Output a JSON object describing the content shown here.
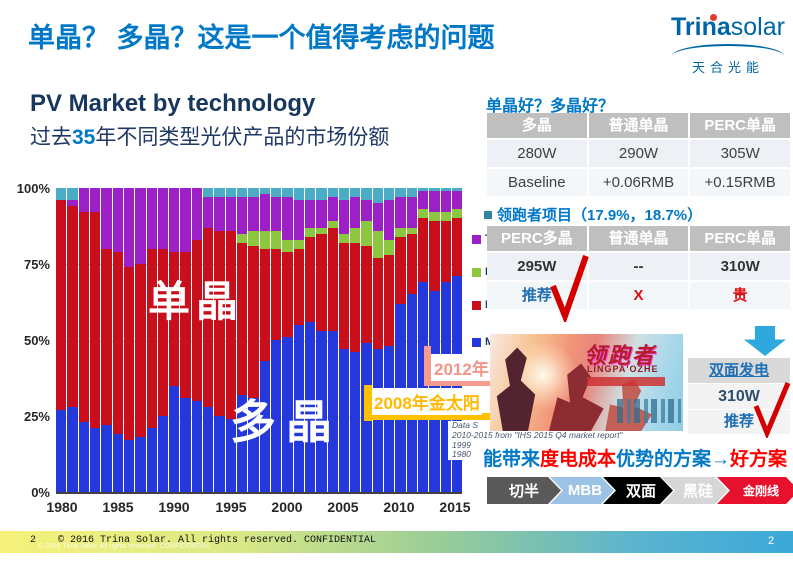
{
  "title": "单晶？ 多晶？这是一个值得考虑的问题",
  "logo": {
    "brand_bold": "Trina",
    "brand_light": "solar",
    "subtitle": "天合光能"
  },
  "chart": {
    "title": "PV Market by technology",
    "subtitle_prefix": "过去",
    "subtitle_num": "35",
    "subtitle_suffix": "年不同类型光伏产品的市场份额",
    "overlay_mono": "单晶",
    "overlay_multi": "多晶",
    "y_ticks": [
      "100%",
      "75%",
      "50%",
      "25%",
      "0%"
    ],
    "x_ticks": [
      "1980",
      "1985",
      "1990",
      "1995",
      "2000",
      "2005",
      "2010",
      "2015"
    ]
  },
  "chart_data": {
    "type": "bar",
    "subtype": "stacked-100-percent",
    "title": "PV Market by technology",
    "xlabel": "year",
    "ylabel": "market share %",
    "ylim": [
      0,
      100
    ],
    "grid": true,
    "legend_note": "legend labels occluded by overlapping tables; only colour swatches and first letters visible",
    "x": [
      1980,
      1981,
      1982,
      1983,
      1984,
      1985,
      1986,
      1987,
      1988,
      1989,
      1990,
      1991,
      1992,
      1993,
      1994,
      1995,
      1996,
      1997,
      1998,
      1999,
      2000,
      2001,
      2002,
      2003,
      2004,
      2005,
      2006,
      2007,
      2008,
      2009,
      2010,
      2011,
      2012,
      2013,
      2014,
      2015
    ],
    "series": [
      {
        "name": "多晶 (blue)",
        "color": "#2438DB",
        "values": [
          27,
          28,
          23,
          21,
          22,
          19,
          17,
          18,
          21,
          25,
          35,
          31,
          30,
          28,
          25,
          24,
          32,
          31,
          43,
          50,
          51,
          55,
          56,
          53,
          53,
          47,
          46,
          49,
          47,
          48,
          62,
          65,
          69,
          66,
          69,
          71
        ]
      },
      {
        "name": "单晶 (red)",
        "color": "#C90F1B",
        "values": [
          69,
          66,
          69,
          71,
          58,
          60,
          57,
          57,
          59,
          55,
          44,
          48,
          53,
          59,
          61,
          62,
          50,
          50,
          37,
          30,
          28,
          25,
          28,
          32,
          34,
          35,
          36,
          32,
          30,
          30,
          22,
          20,
          21,
          23,
          20,
          19
        ]
      },
      {
        "name": "green series",
        "color": "#8DC63F",
        "values": [
          0,
          0,
          0,
          0,
          0,
          0,
          0,
          0,
          0,
          0,
          0,
          0,
          0,
          0,
          0,
          0,
          3,
          5,
          6,
          6,
          4,
          3,
          3,
          2,
          2,
          3,
          5,
          8,
          9,
          5,
          3,
          2,
          3,
          3,
          3,
          3
        ]
      },
      {
        "name": "purple series",
        "color": "#9C20C6",
        "values": [
          0,
          2,
          8,
          8,
          20,
          21,
          26,
          25,
          20,
          20,
          21,
          21,
          17,
          10,
          11,
          11,
          12,
          11,
          12,
          11,
          14,
          13,
          9,
          9,
          8,
          11,
          10,
          7,
          9,
          13,
          10,
          10,
          6,
          7,
          7,
          6
        ]
      },
      {
        "name": "teal series",
        "color": "#4BACC6",
        "values": [
          4,
          4,
          0,
          0,
          0,
          0,
          0,
          0,
          0,
          0,
          0,
          0,
          0,
          3,
          3,
          3,
          3,
          3,
          2,
          3,
          3,
          4,
          4,
          4,
          3,
          4,
          3,
          4,
          5,
          4,
          3,
          3,
          1,
          1,
          1,
          1
        ]
      }
    ],
    "legend_fragments": [
      {
        "color": "#9C20C6",
        "text": "T"
      },
      {
        "color": "#8DC63F",
        "text": "I"
      },
      {
        "color": "#C90F1B",
        "text": "M"
      },
      {
        "color": "#2438DB",
        "text": "M"
      }
    ]
  },
  "callouts": {
    "pink": "2012年",
    "yellow": "2008年金太阳"
  },
  "data_source": {
    "lines": [
      "Data S",
      "2010-2015  from \"IHS 2015 Q4 market report\"",
      "1999",
      "1980"
    ]
  },
  "right": {
    "q_title": "单晶好？多晶好？",
    "table1": {
      "headers": [
        "多晶",
        "普通单晶",
        "PERC单晶"
      ],
      "rows": [
        [
          "280W",
          "290W",
          "305W"
        ],
        [
          "Baseline",
          "+0.06RMB",
          "+0.15RMB"
        ]
      ]
    },
    "leader_title": "领跑者项目（17.9%，18.7%）",
    "table2": {
      "headers": [
        "PERC多晶",
        "普通单晶",
        "PERC单晶"
      ],
      "rows": [
        [
          "295W",
          "--",
          "310W"
        ],
        [
          "推荐",
          "X",
          "贵"
        ]
      ]
    },
    "image_text": {
      "cn": "领跑者",
      "en": "LINGPA'OZHE"
    },
    "bifacial": {
      "header": "双面发电",
      "power": "310W",
      "verdict": "推荐"
    },
    "cost_line_parts": [
      {
        "t": "能带来",
        "c": "blue"
      },
      {
        "t": "度电成本",
        "c": "red"
      },
      {
        "t": "优势的方案",
        "c": "blue"
      },
      {
        "t": "→",
        "c": "blue"
      },
      {
        "t": "好方案",
        "c": "red"
      }
    ],
    "chevrons": [
      {
        "label": "切半",
        "color": "#595959"
      },
      {
        "label": "MBB",
        "color": "#9CC3E5"
      },
      {
        "label": "双面",
        "color": "#000000"
      },
      {
        "label": "黑硅",
        "color": "#D6D6D6"
      },
      {
        "label": "金刚线",
        "color": "#E8112D"
      }
    ]
  },
  "footer": {
    "page": "2",
    "copyright": "© 2016 Trina Solar. All rights reserved. CONFIDENTIAL",
    "page_right": "2"
  }
}
